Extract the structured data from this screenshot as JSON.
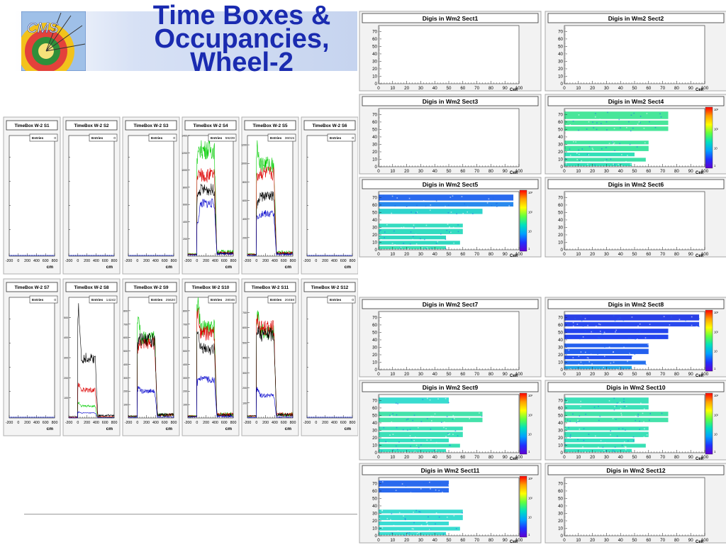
{
  "slide": {
    "title_lines": [
      "Time Boxes &",
      "Occupancies,",
      "Wheel-2"
    ],
    "logo_text": "CMS"
  },
  "colors": {
    "title": "#1a2bb0",
    "series": [
      "#00cc00",
      "#dd0000",
      "#000000",
      "#0000cc"
    ]
  },
  "chart_data": [
    {
      "type": "line",
      "group": "timebox",
      "x_unit_label": "cm",
      "x_ticks": [
        "-200",
        "0",
        "200",
        "400",
        "600",
        "800"
      ],
      "entries_label": "Entries",
      "series_colors": [
        "green",
        "red",
        "black",
        "blue"
      ],
      "panels": [
        {
          "title": "TimeBox W-2 S1",
          "entries": "0",
          "ymax": 1,
          "yticks": [],
          "empty": true
        },
        {
          "title": "TimeBox W-2 S2",
          "entries": "0",
          "ymax": 1,
          "yticks": [],
          "empty": true
        },
        {
          "title": "TimeBox W-2 S3",
          "entries": "0",
          "ymax": 1,
          "yticks": [],
          "empty": true
        },
        {
          "title": "TimeBox W-2 S4",
          "entries": "59239",
          "ymax": 1400,
          "yticks": [
            "1400",
            "1200",
            "1000",
            "800",
            "600",
            "400",
            "200"
          ],
          "empty": false,
          "levels": [
            1250,
            950,
            780,
            620
          ],
          "peak": [
            1150,
            950,
            700,
            380
          ]
        },
        {
          "title": "TimeBox W-2 S5",
          "entries": "36015",
          "ymax": 1300,
          "yticks": [
            "1200",
            "1000",
            "800",
            "600",
            "400",
            "200"
          ],
          "empty": false,
          "levels": [
            1000,
            900,
            650,
            460
          ],
          "peak": [
            1200,
            850,
            550,
            420
          ]
        },
        {
          "title": "TimeBox W-2 S6",
          "entries": "0",
          "ymax": 1,
          "yticks": [],
          "empty": true
        },
        {
          "title": "TimeBox W-2 S7",
          "entries": "0",
          "ymax": 1,
          "yticks": [],
          "empty": true
        },
        {
          "title": "TimeBox W-2 S8",
          "entries": "14242",
          "ymax": 600,
          "yticks": [
            "500",
            "400",
            "300",
            "200",
            "100"
          ],
          "empty": false,
          "levels": [
            60,
            140,
            300,
            25
          ],
          "peak": [
            80,
            170,
            540,
            30
          ]
        },
        {
          "title": "TimeBox W-2 S9",
          "entries": "25620",
          "ymax": 900,
          "yticks": [
            "800",
            "700",
            "600",
            "500",
            "400",
            "300",
            "200",
            "100"
          ],
          "empty": false,
          "levels": [
            600,
            560,
            590,
            200
          ],
          "peak": [
            800,
            540,
            580,
            230
          ]
        },
        {
          "title": "TimeBox W-2 S10",
          "entries": "28046",
          "ymax": 900,
          "yticks": [
            "800",
            "700",
            "600",
            "500",
            "400",
            "300",
            "200",
            "100"
          ],
          "empty": false,
          "levels": [
            680,
            640,
            520,
            290
          ],
          "peak": [
            860,
            780,
            620,
            280
          ]
        },
        {
          "title": "TimeBox W-2 S11",
          "entries": "20458",
          "ymax": 800,
          "yticks": [
            "700",
            "600",
            "500",
            "400",
            "300",
            "200",
            "100"
          ],
          "empty": false,
          "levels": [
            580,
            600,
            560,
            150
          ],
          "peak": [
            710,
            650,
            600,
            200
          ]
        },
        {
          "title": "TimeBox W-2 S12",
          "entries": "0",
          "ymax": 1,
          "yticks": [],
          "empty": true
        }
      ]
    },
    {
      "type": "heatmap",
      "group": "occupancy",
      "xlabel": "Cell",
      "x_ticks": [
        "0",
        "10",
        "20",
        "30",
        "40",
        "50",
        "60",
        "70",
        "80",
        "90",
        "100"
      ],
      "y_ticks": [
        "0",
        "10",
        "20",
        "30",
        "40",
        "50",
        "60",
        "70"
      ],
      "xlim": [
        0,
        100
      ],
      "ylim": [
        0,
        78
      ],
      "palette_labels": [
        "10³",
        "10²",
        "10",
        "1"
      ],
      "panels": [
        {
          "title": "Digis in Wm2 Sect1",
          "rows": []
        },
        {
          "title": "Digis in Wm2 Sect2",
          "rows": []
        },
        {
          "title": "Digis in Wm2 Sect3",
          "rows": []
        },
        {
          "title": "Digis in Wm2 Sect4",
          "rows": [
            {
              "y0": 1,
              "y1": 5,
              "len": 48,
              "shade": "#32e0b8"
            },
            {
              "y0": 7,
              "y1": 12,
              "len": 58,
              "shade": "#3ee0a8"
            },
            {
              "y0": 14,
              "y1": 19,
              "len": 50,
              "shade": "#32e0b8"
            },
            {
              "y0": 21,
              "y1": 28,
              "len": 60,
              "shade": "#40e5a0"
            },
            {
              "y0": 30,
              "y1": 35,
              "len": 60,
              "shade": "#40e5a0"
            },
            {
              "y0": 48,
              "y1": 54,
              "len": 74,
              "shade": "#48e69a"
            },
            {
              "y0": 56,
              "y1": 62,
              "len": 74,
              "shade": "#48e69a"
            },
            {
              "y0": 64,
              "y1": 74,
              "len": 74,
              "shade": "#48e69a"
            }
          ]
        },
        {
          "title": "Digis in Wm2 Sect5",
          "rows": [
            {
              "y0": 1,
              "y1": 5,
              "len": 48,
              "shade": "#3ee0b4"
            },
            {
              "y0": 7,
              "y1": 12,
              "len": 58,
              "shade": "#30d8c0"
            },
            {
              "y0": 14,
              "y1": 19,
              "len": 48,
              "shade": "#30d8c0"
            },
            {
              "y0": 21,
              "y1": 28,
              "len": 60,
              "shade": "#34dcc0"
            },
            {
              "y0": 30,
              "y1": 35,
              "len": 60,
              "shade": "#34dcc0"
            },
            {
              "y0": 48,
              "y1": 55,
              "len": 74,
              "shade": "#2ed4cc"
            },
            {
              "y0": 58,
              "y1": 64,
              "len": 96,
              "shade": "#2a8aee"
            },
            {
              "y0": 66,
              "y1": 74,
              "len": 96,
              "shade": "#2a6aee"
            }
          ]
        },
        {
          "title": "Digis in Wm2 Sect6",
          "rows": []
        },
        {
          "title": "Digis in Wm2 Sect7",
          "rows": []
        },
        {
          "title": "Digis in Wm2 Sect8",
          "rows": [
            {
              "y0": 1,
              "y1": 5,
              "len": 48,
              "shade": "#24a8e6"
            },
            {
              "y0": 7,
              "y1": 12,
              "len": 58,
              "shade": "#2470ee"
            },
            {
              "y0": 14,
              "y1": 19,
              "len": 48,
              "shade": "#2450ee"
            },
            {
              "y0": 21,
              "y1": 28,
              "len": 60,
              "shade": "#2460ee"
            },
            {
              "y0": 30,
              "y1": 35,
              "len": 60,
              "shade": "#2460ee"
            },
            {
              "y0": 41,
              "y1": 47,
              "len": 74,
              "shade": "#2444ee"
            },
            {
              "y0": 49,
              "y1": 55,
              "len": 74,
              "shade": "#2444ee"
            },
            {
              "y0": 58,
              "y1": 64,
              "len": 96,
              "shade": "#2a4aee"
            },
            {
              "y0": 66,
              "y1": 74,
              "len": 96,
              "shade": "#2a40e6"
            }
          ]
        },
        {
          "title": "Digis in Wm2 Sect9",
          "rows": [
            {
              "y0": 1,
              "y1": 5,
              "len": 48,
              "shade": "#36e0c0"
            },
            {
              "y0": 7,
              "y1": 12,
              "len": 58,
              "shade": "#38e0b4"
            },
            {
              "y0": 14,
              "y1": 19,
              "len": 50,
              "shade": "#36e0c0"
            },
            {
              "y0": 21,
              "y1": 28,
              "len": 60,
              "shade": "#3ce0b8"
            },
            {
              "y0": 30,
              "y1": 35,
              "len": 60,
              "shade": "#3ce0b8"
            },
            {
              "y0": 41,
              "y1": 47,
              "len": 74,
              "shade": "#44e2aa"
            },
            {
              "y0": 49,
              "y1": 55,
              "len": 74,
              "shade": "#44e2aa"
            },
            {
              "y0": 66,
              "y1": 74,
              "len": 50,
              "shade": "#38dcd0"
            }
          ]
        },
        {
          "title": "Digis in Wm2 Sect10",
          "rows": [
            {
              "y0": 1,
              "y1": 5,
              "len": 48,
              "shade": "#36e0c0"
            },
            {
              "y0": 7,
              "y1": 12,
              "len": 58,
              "shade": "#38e0b4"
            },
            {
              "y0": 14,
              "y1": 19,
              "len": 50,
              "shade": "#36e0c0"
            },
            {
              "y0": 21,
              "y1": 28,
              "len": 60,
              "shade": "#3ce0b8"
            },
            {
              "y0": 30,
              "y1": 35,
              "len": 60,
              "shade": "#3ce0b8"
            },
            {
              "y0": 41,
              "y1": 47,
              "len": 74,
              "shade": "#44e2aa"
            },
            {
              "y0": 49,
              "y1": 55,
              "len": 74,
              "shade": "#44e2aa"
            },
            {
              "y0": 58,
              "y1": 64,
              "len": 60,
              "shade": "#3ce0b8"
            },
            {
              "y0": 66,
              "y1": 74,
              "len": 60,
              "shade": "#3ce0b8"
            }
          ]
        },
        {
          "title": "Digis in Wm2 Sect11",
          "rows": [
            {
              "y0": 1,
              "y1": 5,
              "len": 48,
              "shade": "#3adcd0"
            },
            {
              "y0": 7,
              "y1": 12,
              "len": 58,
              "shade": "#3adcd0"
            },
            {
              "y0": 14,
              "y1": 19,
              "len": 50,
              "shade": "#38dcd4"
            },
            {
              "y0": 21,
              "y1": 28,
              "len": 60,
              "shade": "#3adcd0"
            },
            {
              "y0": 30,
              "y1": 35,
              "len": 60,
              "shade": "#3adcd0"
            },
            {
              "y0": 58,
              "y1": 64,
              "len": 50,
              "shade": "#2a6aee"
            },
            {
              "y0": 66,
              "y1": 74,
              "len": 50,
              "shade": "#2a6aee"
            }
          ]
        },
        {
          "title": "Digis in Wm2 Sect12",
          "rows": []
        }
      ]
    }
  ]
}
